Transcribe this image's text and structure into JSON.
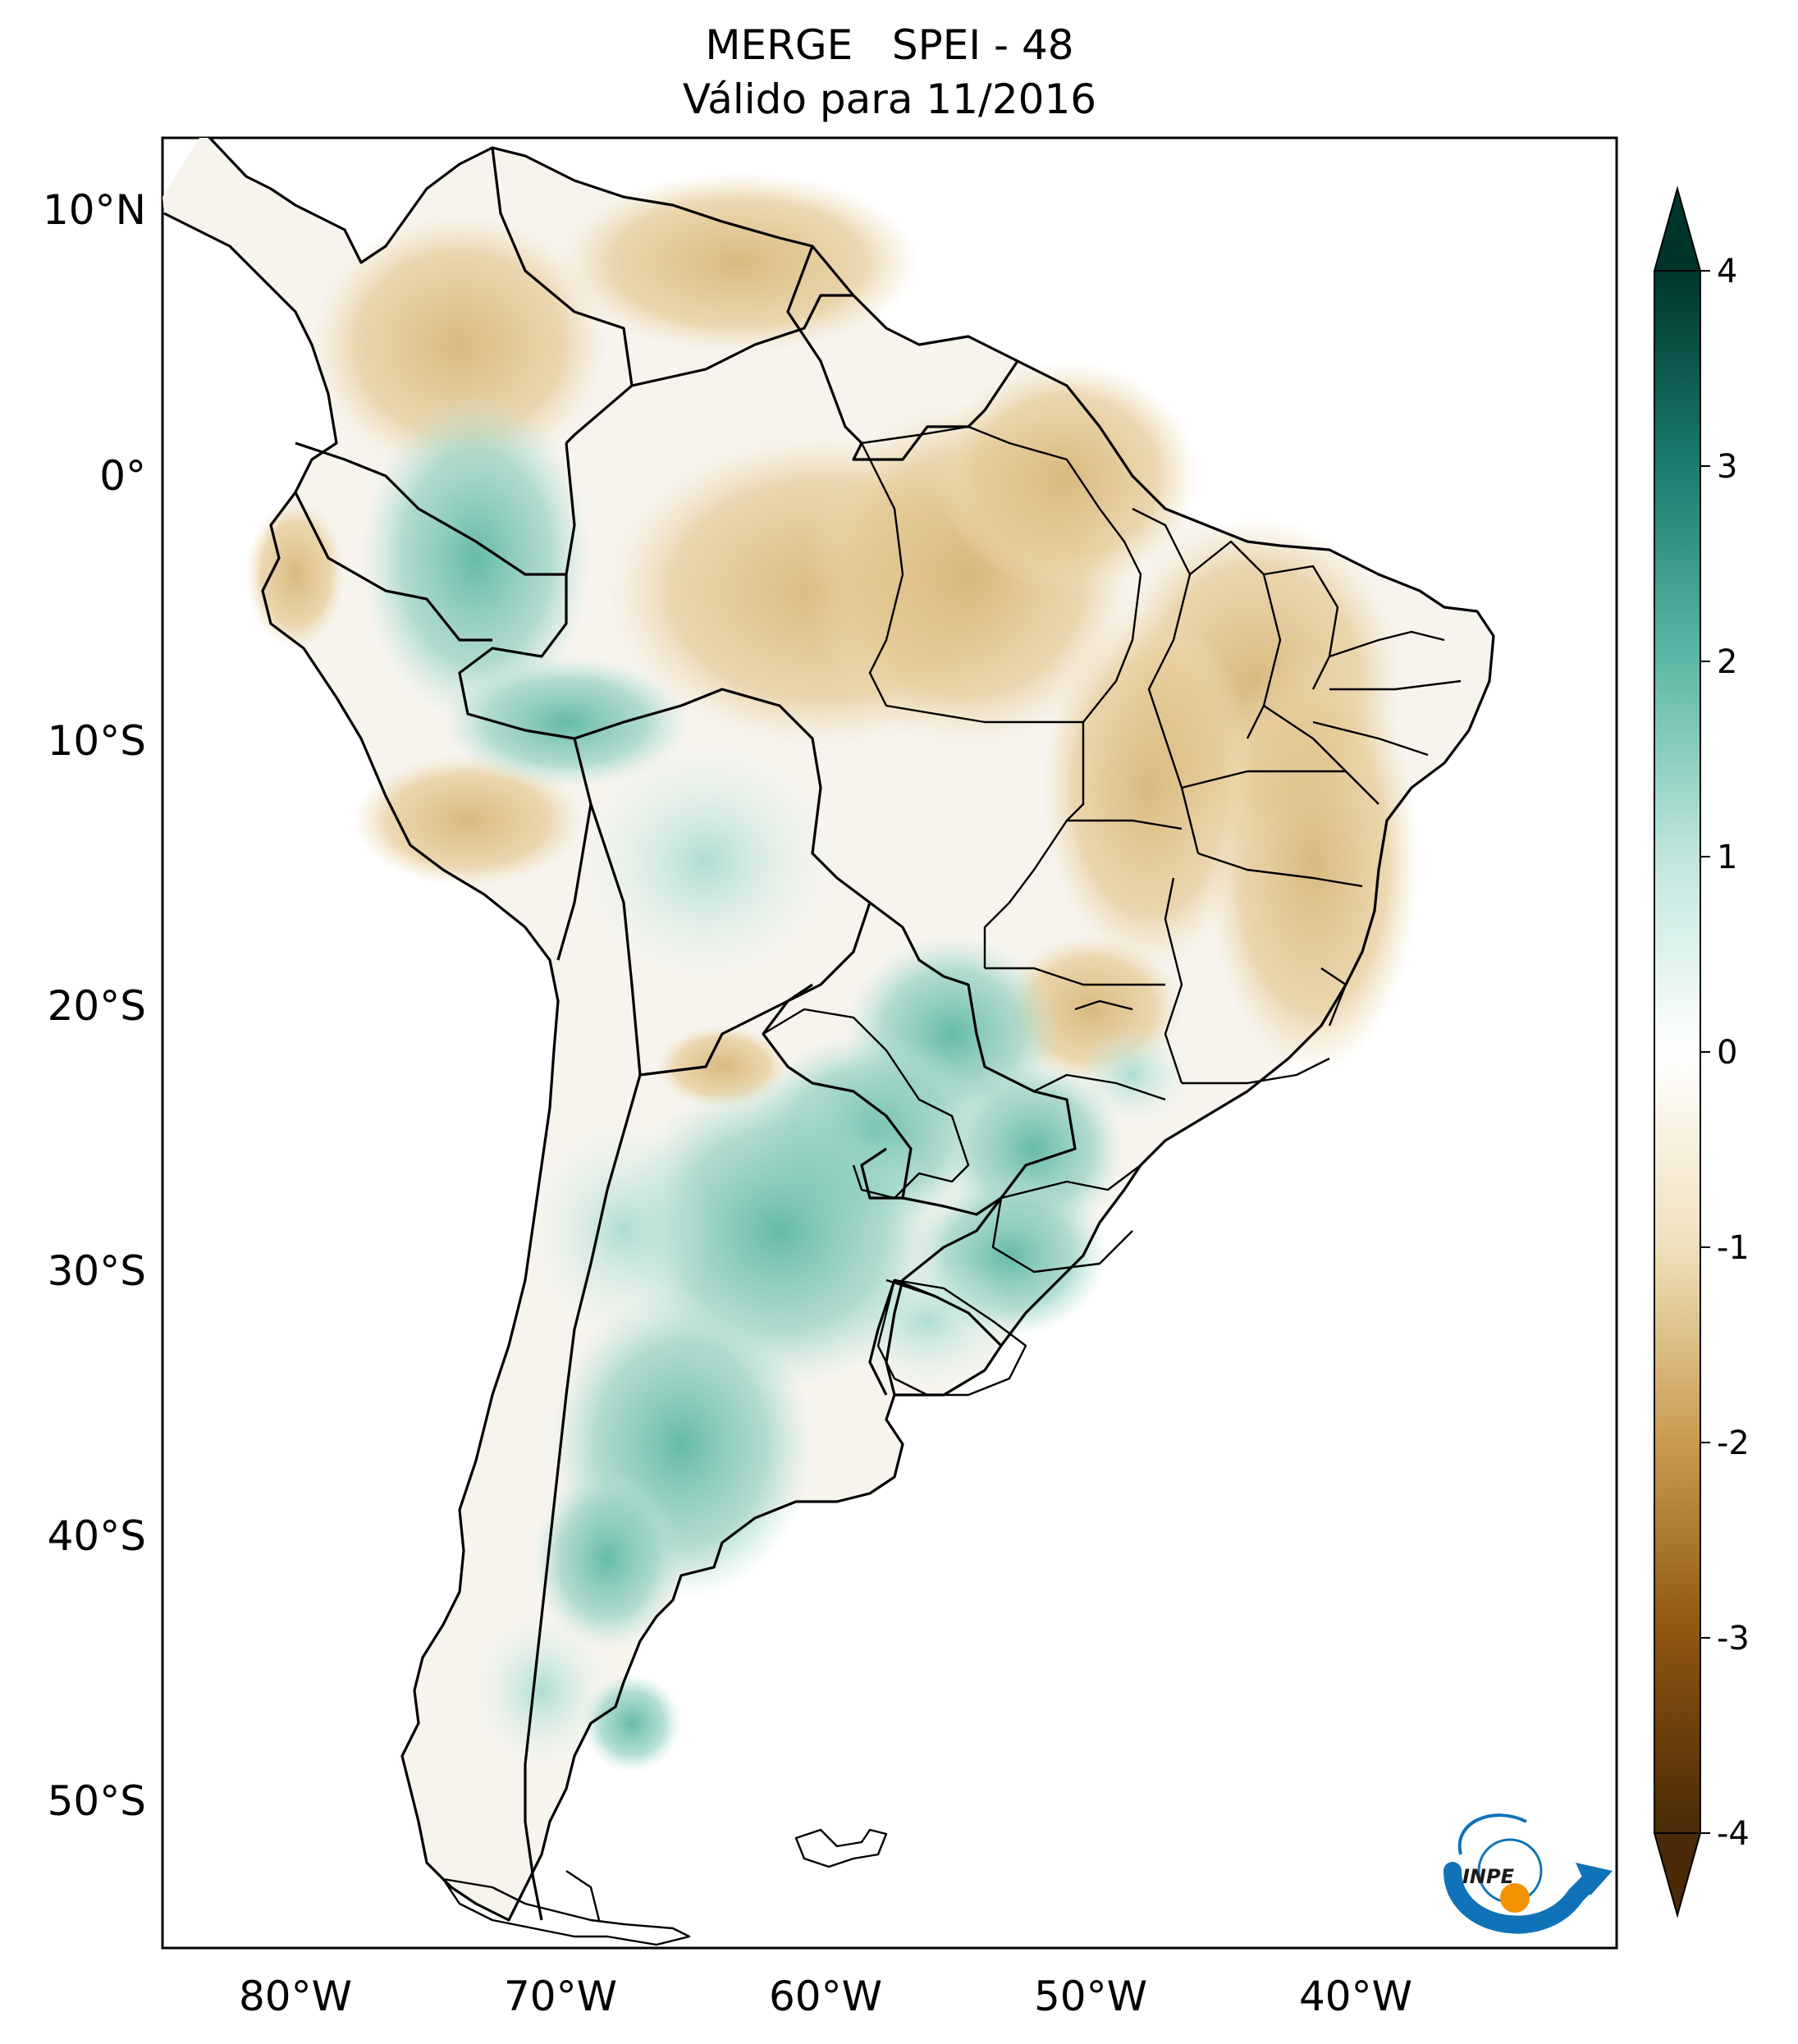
{
  "title": {
    "line1": "MERGE   SPEI - 48",
    "line2": "Válido para 11/2016"
  },
  "map": {
    "variable": "SPEI - 48",
    "dataset": "MERGE",
    "valid_date": "11/2016",
    "lon_range": [
      -85,
      -30
    ],
    "lat_range": [
      -56,
      13
    ],
    "lat_ticks": [
      {
        "value": 10,
        "label": "10°N"
      },
      {
        "value": 0,
        "label": "0°"
      },
      {
        "value": -10,
        "label": "10°S"
      },
      {
        "value": -20,
        "label": "20°S"
      },
      {
        "value": -30,
        "label": "30°S"
      },
      {
        "value": -40,
        "label": "40°S"
      },
      {
        "value": -50,
        "label": "50°S"
      }
    ],
    "lon_ticks": [
      {
        "value": -80,
        "label": "80°W"
      },
      {
        "value": -70,
        "label": "70°W"
      },
      {
        "value": -60,
        "label": "60°W"
      },
      {
        "value": -50,
        "label": "50°W"
      },
      {
        "value": -40,
        "label": "40°W"
      }
    ]
  },
  "colorbar": {
    "range": [
      -4,
      4
    ],
    "extend": "both",
    "ticks": [
      "4",
      "3",
      "2",
      "1",
      "0",
      "-1",
      "-2",
      "-3",
      "-4"
    ],
    "colors": {
      "-4": "#4a2a07",
      "-3": "#8c5510",
      "-2": "#c89b4e",
      "-1": "#f0e0bb",
      "0": "#ffffff",
      "1": "#bfe6dd",
      "2": "#5db8a6",
      "3": "#1a7d6e",
      "4": "#00352c"
    }
  },
  "logo": {
    "text": "INPE",
    "icon": "inpe-logo-icon",
    "colors": {
      "arc": "#1072b8",
      "dot": "#f39200"
    }
  }
}
